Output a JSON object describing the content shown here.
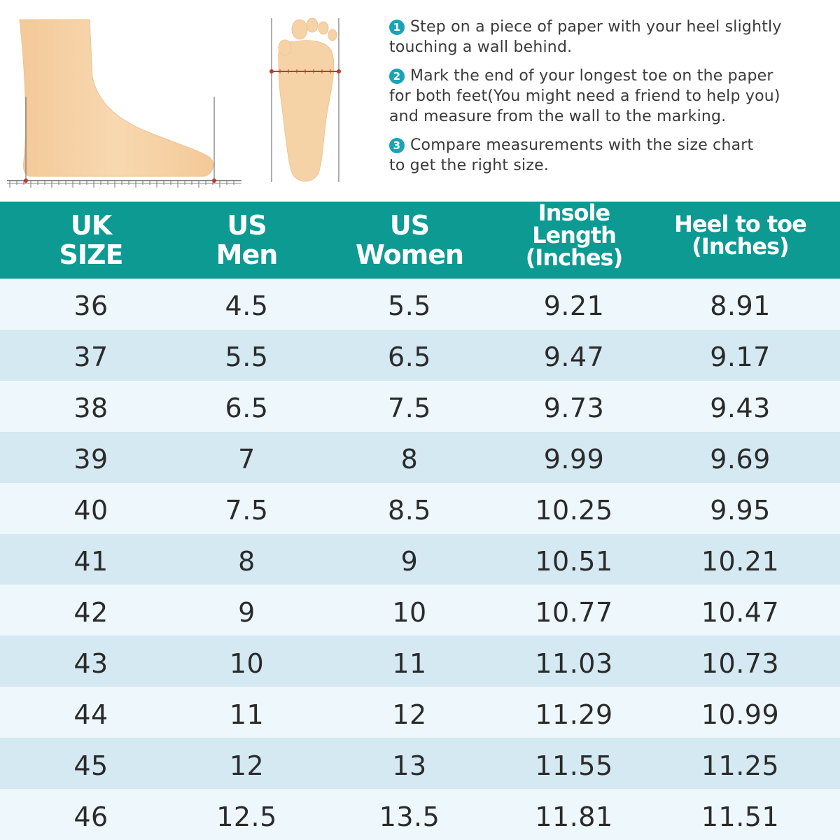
{
  "instructions": [
    {
      "number": "1",
      "text_line1": "Step on a piece of paper with your heel slightly",
      "text_line2": "touching a wall behind."
    },
    {
      "number": "2",
      "text_line1": "Mark the end of your longest toe on the paper",
      "text_line2": "for both feet(You might need a friend to help you)",
      "text_line3": "and measure from the wall to the marking."
    },
    {
      "number": "3",
      "text_line1": "Compare measurements with the size chart",
      "text_line2": "to get the right size."
    }
  ],
  "table": {
    "headers": [
      {
        "line1": "UK",
        "line2": "SIZE"
      },
      {
        "line1": "US",
        "line2": "Men"
      },
      {
        "line1": "US",
        "line2": "Women"
      },
      {
        "line1": "Insole Length",
        "line2": "(Inches)"
      },
      {
        "line1": "Heel to toe",
        "line2": "(Inches)"
      }
    ],
    "rows": [
      [
        "36",
        "4.5",
        "5.5",
        "9.21",
        "8.91"
      ],
      [
        "37",
        "5.5",
        "6.5",
        "9.47",
        "9.17"
      ],
      [
        "38",
        "6.5",
        "7.5",
        "9.73",
        "9.43"
      ],
      [
        "39",
        "7",
        "8",
        "9.99",
        "9.69"
      ],
      [
        "40",
        "7.5",
        "8.5",
        "10.25",
        "9.95"
      ],
      [
        "41",
        "8",
        "9",
        "10.51",
        "10.21"
      ],
      [
        "42",
        "9",
        "10",
        "10.77",
        "10.47"
      ],
      [
        "43",
        "10",
        "11",
        "11.03",
        "10.73"
      ],
      [
        "44",
        "11",
        "12",
        "11.29",
        "10.99"
      ],
      [
        "45",
        "12",
        "13",
        "11.55",
        "11.25"
      ],
      [
        "46",
        "12.5",
        "13.5",
        "11.81",
        "11.51"
      ]
    ]
  },
  "colors": {
    "header_bg": "#0c9a93",
    "row_light": "#eef7fb",
    "row_dark": "#d4e9f2",
    "step_badge": "#1aa3b8",
    "skin": "#f6d3a6",
    "measure_mark": "#c0392b"
  },
  "icons": [
    "foot-side-illustration",
    "foot-sole-illustration",
    "ruler-icon"
  ]
}
